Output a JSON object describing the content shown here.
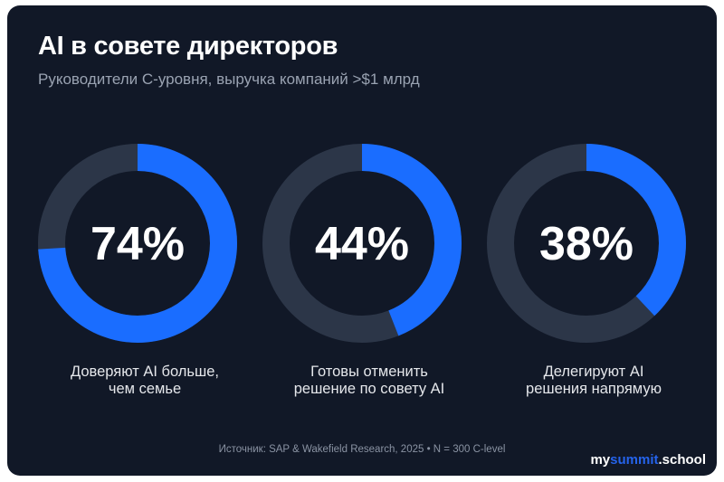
{
  "header": {
    "title": "AI в совете директоров",
    "subtitle": "Руководители С-уровня, выручка компаний >$1 млрд"
  },
  "chart_data": {
    "type": "donut",
    "series": [
      {
        "value": 74,
        "display": "74%",
        "label_line1": "Доверяют AI больше,",
        "label_line2": "чем семье"
      },
      {
        "value": 44,
        "display": "44%",
        "label_line1": "Готовы отменить",
        "label_line2": "решение по совету AI"
      },
      {
        "value": 38,
        "display": "38%",
        "label_line1": "Делегируют AI",
        "label_line2": "решения напрямую"
      }
    ],
    "max": 100,
    "colors": {
      "fill": "#1a6dff",
      "track": "#2c3648",
      "background": "#111827"
    }
  },
  "footer": {
    "source": "Источник: SAP & Wakefield Research, 2025 • N = 300 C-level",
    "logo_part1": "my",
    "logo_part2": "summit",
    "logo_part3": ".school"
  }
}
